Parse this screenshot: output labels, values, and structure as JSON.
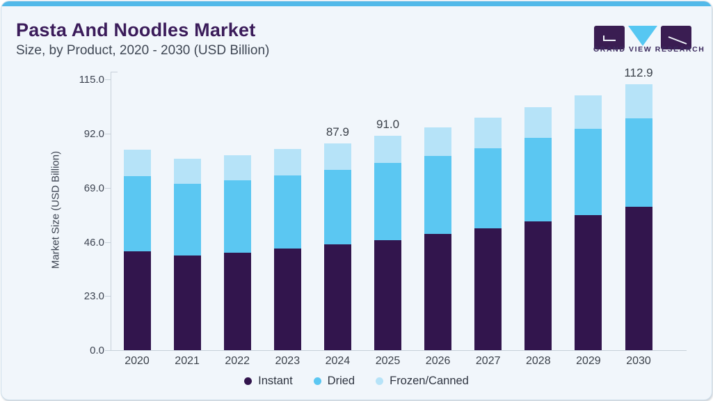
{
  "header": {
    "title": "Pasta And Noodles Market",
    "subtitle": "Size, by Product, 2020 - 2030 (USD Billion)",
    "logo_wordmark": "GRAND VIEW RESEARCH"
  },
  "colors": {
    "accent_bar": "#52b9e9",
    "card_bg": "#f1f6fb",
    "card_border": "#ccdde9",
    "title_text": "#3b1c5a",
    "body_text": "#3c4350",
    "axis_line": "#c7d0d9",
    "instant": "#32154d",
    "dried": "#5bc7f2",
    "frozen_canned": "#b6e3f8",
    "logo_purple": "#3a1d52",
    "logo_blue": "#56c7f2"
  },
  "chart_data": {
    "type": "bar",
    "stacked": true,
    "title": "Pasta And Noodles Market Size, by Product, 2020 - 2030 (USD Billion)",
    "xlabel": "",
    "ylabel": "Market Size (USD Billion)",
    "categories": [
      "2020",
      "2021",
      "2022",
      "2023",
      "2024",
      "2025",
      "2026",
      "2027",
      "2028",
      "2029",
      "2030"
    ],
    "series": [
      {
        "name": "Instant",
        "color": "#32154d",
        "values": [
          42.0,
          40.2,
          41.5,
          43.2,
          44.9,
          46.8,
          49.4,
          51.9,
          54.7,
          57.5,
          61.0
        ]
      },
      {
        "name": "Dried",
        "color": "#5bc7f2",
        "values": [
          32.0,
          30.6,
          30.7,
          31.2,
          31.6,
          32.7,
          33.0,
          34.0,
          35.4,
          36.6,
          37.6
        ]
      },
      {
        "name": "Frozen/Canned",
        "color": "#b6e3f8",
        "values": [
          11.2,
          10.7,
          10.6,
          11.2,
          11.4,
          11.5,
          12.3,
          12.9,
          13.2,
          14.2,
          14.3
        ]
      }
    ],
    "totals": [
      85.2,
      81.5,
      82.8,
      85.6,
      87.9,
      91.0,
      94.7,
      98.8,
      103.3,
      108.3,
      112.9
    ],
    "annotations": [
      {
        "category": "2024",
        "text": "87.9"
      },
      {
        "category": "2025",
        "text": "91.0"
      },
      {
        "category": "2030",
        "text": "112.9"
      }
    ],
    "yticks": [
      "0.0",
      "23.0",
      "46.0",
      "69.0",
      "92.0",
      "115.0"
    ],
    "ylim": [
      0,
      115
    ],
    "grid": false,
    "legend_position": "bottom"
  }
}
